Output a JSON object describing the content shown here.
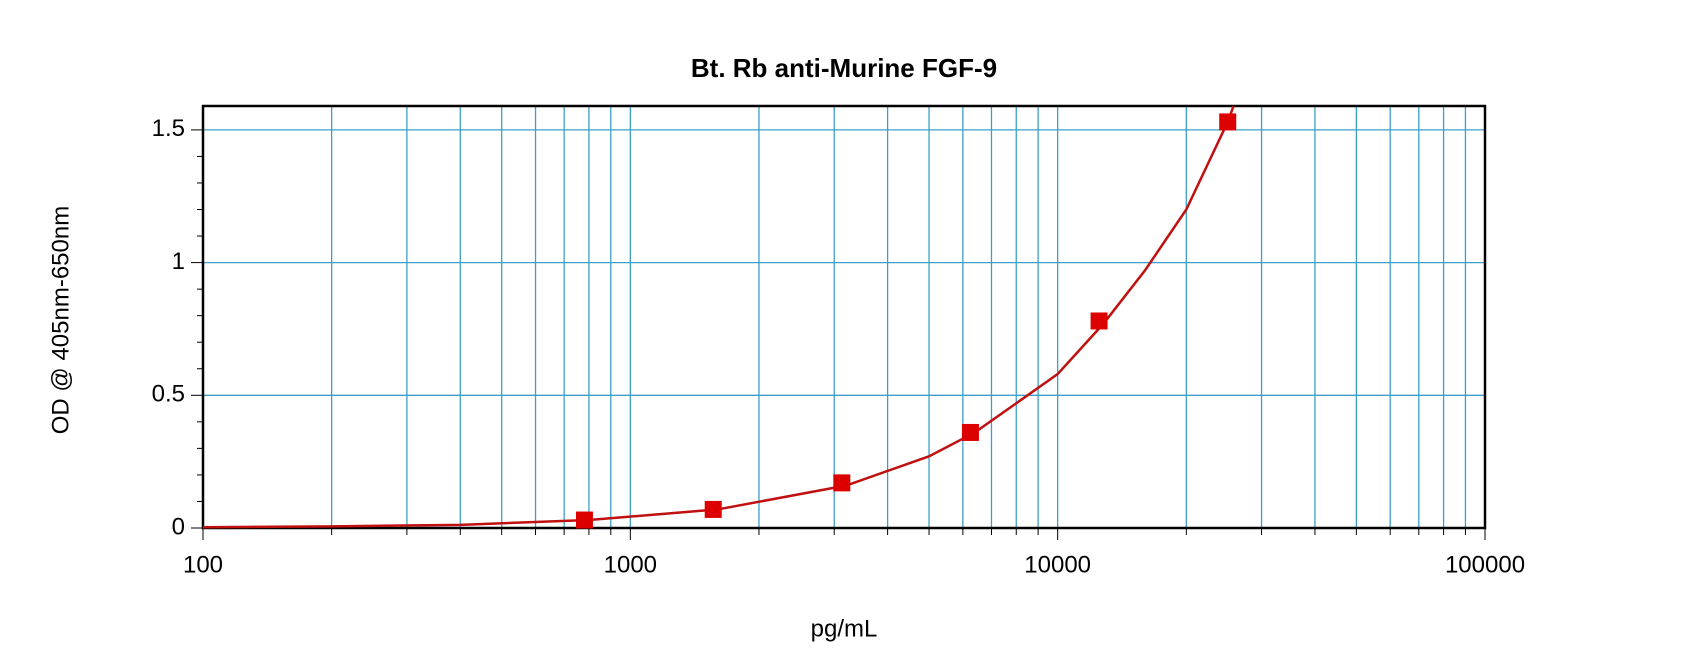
{
  "chart_data": {
    "type": "scatter",
    "title": "Bt. Rb anti-Murine FGF-9",
    "x_label": "pg/mL",
    "y_label": "OD @ 405nm-650nm",
    "x_scale": "log",
    "grid": true,
    "xlim": [
      100,
      100000
    ],
    "ylim": [
      0,
      1.59
    ],
    "xticks": [
      100,
      1000,
      10000,
      100000
    ],
    "xminorticks": [
      200,
      300,
      400,
      500,
      600,
      700,
      800,
      900,
      2000,
      3000,
      4000,
      5000,
      6000,
      7000,
      8000,
      9000,
      20000,
      30000,
      40000,
      50000,
      60000,
      70000,
      80000,
      90000
    ],
    "yticks": [
      0,
      0.5,
      1,
      1.5
    ],
    "yminorticks": [
      0.1,
      0.2,
      0.3,
      0.4,
      0.6,
      0.7,
      0.8,
      0.9,
      1.1,
      1.2,
      1.3,
      1.4
    ],
    "points": {
      "color": "#dd0000",
      "x": [
        781,
        1563,
        3125,
        6250,
        12500,
        25000
      ],
      "values": [
        0.03,
        0.07,
        0.17,
        0.36,
        0.78,
        1.53
      ]
    },
    "fit": {
      "color": "#c01010",
      "x": [
        100,
        200,
        400,
        800,
        1600,
        3200,
        5000,
        6400,
        10000,
        12800,
        16000,
        20000,
        25000,
        25800
      ],
      "values": [
        0.003,
        0.006,
        0.012,
        0.03,
        0.07,
        0.16,
        0.27,
        0.36,
        0.58,
        0.77,
        0.97,
        1.2,
        1.53,
        1.59
      ]
    }
  }
}
